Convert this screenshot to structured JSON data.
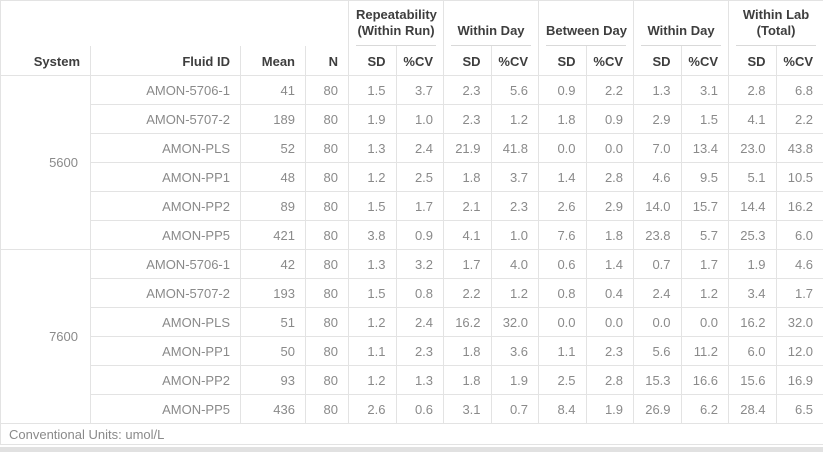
{
  "table": {
    "headers": {
      "system": "System",
      "fluid_id": "Fluid ID",
      "mean": "Mean",
      "n": "N",
      "sd": "SD",
      "cv": "%CV"
    },
    "column_groups": [
      {
        "name": "repeatability-within-run",
        "line1": "Repeatability",
        "line2": "(Within Run)"
      },
      {
        "name": "within-day-1",
        "line1": "Within Day",
        "line2": ""
      },
      {
        "name": "between-day",
        "line1": "Between Day",
        "line2": ""
      },
      {
        "name": "within-day-2",
        "line1": "Within Day",
        "line2": ""
      },
      {
        "name": "within-lab-total",
        "line1": "Within Lab",
        "line2": "(Total)"
      }
    ],
    "groups": [
      {
        "system": "5600",
        "rows": [
          {
            "fluid_id": "AMON-5706-1",
            "mean": "41",
            "n": "80",
            "values": [
              "1.5",
              "3.7",
              "2.3",
              "5.6",
              "0.9",
              "2.2",
              "1.3",
              "3.1",
              "2.8",
              "6.8"
            ]
          },
          {
            "fluid_id": "AMON-5707-2",
            "mean": "189",
            "n": "80",
            "values": [
              "1.9",
              "1.0",
              "2.3",
              "1.2",
              "1.8",
              "0.9",
              "2.9",
              "1.5",
              "4.1",
              "2.2"
            ]
          },
          {
            "fluid_id": "AMON-PLS",
            "mean": "52",
            "n": "80",
            "values": [
              "1.3",
              "2.4",
              "21.9",
              "41.8",
              "0.0",
              "0.0",
              "7.0",
              "13.4",
              "23.0",
              "43.8"
            ]
          },
          {
            "fluid_id": "AMON-PP1",
            "mean": "48",
            "n": "80",
            "values": [
              "1.2",
              "2.5",
              "1.8",
              "3.7",
              "1.4",
              "2.8",
              "4.6",
              "9.5",
              "5.1",
              "10.5"
            ]
          },
          {
            "fluid_id": "AMON-PP2",
            "mean": "89",
            "n": "80",
            "values": [
              "1.5",
              "1.7",
              "2.1",
              "2.3",
              "2.6",
              "2.9",
              "14.0",
              "15.7",
              "14.4",
              "16.2"
            ]
          },
          {
            "fluid_id": "AMON-PP5",
            "mean": "421",
            "n": "80",
            "values": [
              "3.8",
              "0.9",
              "4.1",
              "1.0",
              "7.6",
              "1.8",
              "23.8",
              "5.7",
              "25.3",
              "6.0"
            ]
          }
        ]
      },
      {
        "system": "7600",
        "rows": [
          {
            "fluid_id": "AMON-5706-1",
            "mean": "42",
            "n": "80",
            "values": [
              "1.3",
              "3.2",
              "1.7",
              "4.0",
              "0.6",
              "1.4",
              "0.7",
              "1.7",
              "1.9",
              "4.6"
            ]
          },
          {
            "fluid_id": "AMON-5707-2",
            "mean": "193",
            "n": "80",
            "values": [
              "1.5",
              "0.8",
              "2.2",
              "1.2",
              "0.8",
              "0.4",
              "2.4",
              "1.2",
              "3.4",
              "1.7"
            ]
          },
          {
            "fluid_id": "AMON-PLS",
            "mean": "51",
            "n": "80",
            "values": [
              "1.2",
              "2.4",
              "16.2",
              "32.0",
              "0.0",
              "0.0",
              "0.0",
              "0.0",
              "16.2",
              "32.0"
            ]
          },
          {
            "fluid_id": "AMON-PP1",
            "mean": "50",
            "n": "80",
            "values": [
              "1.1",
              "2.3",
              "1.8",
              "3.6",
              "1.1",
              "2.3",
              "5.6",
              "11.2",
              "6.0",
              "12.0"
            ]
          },
          {
            "fluid_id": "AMON-PP2",
            "mean": "93",
            "n": "80",
            "values": [
              "1.2",
              "1.3",
              "1.8",
              "1.9",
              "2.5",
              "2.8",
              "15.3",
              "16.6",
              "15.6",
              "16.9"
            ]
          },
          {
            "fluid_id": "AMON-PP5",
            "mean": "436",
            "n": "80",
            "values": [
              "2.6",
              "0.6",
              "3.1",
              "0.7",
              "8.4",
              "1.9",
              "26.9",
              "6.2",
              "28.4",
              "6.5"
            ]
          }
        ]
      }
    ]
  },
  "footer": {
    "note": "Conventional Units: umol/L"
  },
  "colors": {
    "header_text": "#3e3e3e",
    "body_text": "#8a8a8a",
    "cell_border": "#e3e3e3",
    "group_underline": "#d9d9d9",
    "bottom_bar": "#e1e1e1"
  }
}
